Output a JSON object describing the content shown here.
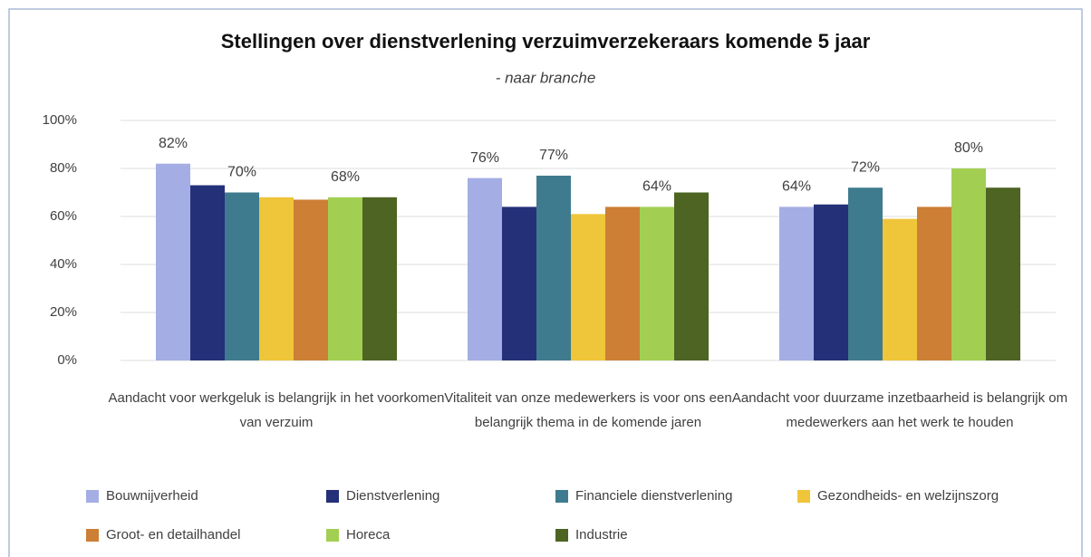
{
  "chart_data": {
    "type": "bar",
    "title": "Stellingen over dienstverlening verzuimverzekeraars komende 5 jaar",
    "subtitle": "- naar branche",
    "categories": [
      "Aandacht voor werkgeluk is belangrijk in het voorkomen van verzuim",
      "Vitaliteit van onze medewerkers is voor ons een belangrijk thema in de komende jaren",
      "Aandacht voor duurzame inzetbaarheid is belangrijk om medewerkers aan het werk te houden"
    ],
    "series": [
      {
        "name": "Bouwnijverheid",
        "color": "#a4aee4",
        "values": [
          82,
          76,
          64
        ],
        "value_labels": [
          "82%",
          "76%",
          "64%"
        ]
      },
      {
        "name": "Dienstverlening",
        "color": "#243078",
        "values": [
          73,
          64,
          65
        ]
      },
      {
        "name": "Financiele dienstverlening",
        "color": "#3f7b8e",
        "values": [
          70,
          77,
          72
        ],
        "value_labels": [
          "70%",
          "77%",
          "72%"
        ]
      },
      {
        "name": "Gezondheids- en welzijnszorg",
        "color": "#efc53a",
        "values": [
          68,
          61,
          59
        ]
      },
      {
        "name": "Groot- en detailhandel",
        "color": "#cc7f35",
        "values": [
          67,
          64,
          64
        ]
      },
      {
        "name": "Horeca",
        "color": "#a2cf52",
        "values": [
          68,
          64,
          80
        ],
        "value_labels": [
          "68%",
          "64%",
          "80%"
        ]
      },
      {
        "name": "Industrie",
        "color": "#4d6423",
        "values": [
          68,
          70,
          72
        ]
      }
    ],
    "ylim": [
      0,
      100
    ],
    "yticks": [
      {
        "value": 0,
        "label": "0%"
      },
      {
        "value": 20,
        "label": "20%"
      },
      {
        "value": 40,
        "label": "40%"
      },
      {
        "value": 60,
        "label": "60%"
      },
      {
        "value": 80,
        "label": "80%"
      },
      {
        "value": 100,
        "label": "100%"
      }
    ],
    "grid": true,
    "legend": "bottom"
  }
}
